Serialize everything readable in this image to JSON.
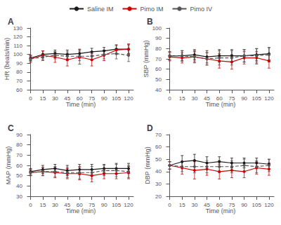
{
  "chart_data": [
    {
      "type": "line",
      "title": "A",
      "xlabel": "Time (min)",
      "ylabel": "HR (beats/min)",
      "x": [
        0,
        15,
        30,
        45,
        60,
        75,
        90,
        105,
        120
      ],
      "xlim": [
        -3,
        126
      ],
      "xticks": [
        0,
        15,
        30,
        45,
        60,
        75,
        90,
        105,
        120
      ],
      "ylim": [
        60,
        130
      ],
      "yticks": [
        60,
        70,
        80,
        90,
        100,
        110,
        120,
        130
      ],
      "grid": false,
      "legend": "top",
      "series": [
        {
          "name": "Saline IM",
          "color": "#1a1a1a",
          "marker": "circle",
          "line_style": "solid",
          "values": [
            96,
            100,
            101,
            100,
            101,
            103,
            104,
            106,
            106
          ],
          "errors": [
            3,
            4,
            4,
            5,
            5,
            4,
            4,
            5,
            5
          ]
        },
        {
          "name": "Pimo IM",
          "color": "#cc0000",
          "marker": "circle",
          "line_style": "solid",
          "values": [
            95,
            99,
            97,
            94,
            97,
            94,
            99,
            105,
            106
          ],
          "errors": [
            4,
            5,
            6,
            7,
            8,
            7,
            6,
            5,
            6
          ]
        },
        {
          "name": "Pimo IV",
          "color": "#555555",
          "marker": "circle",
          "line_style": "dashed",
          "values": [
            95,
            97,
            99,
            98,
            98,
            98,
            100,
            101,
            99
          ],
          "errors": [
            3,
            4,
            4,
            5,
            5,
            5,
            5,
            6,
            7
          ]
        }
      ]
    },
    {
      "type": "line",
      "title": "B",
      "xlabel": "Time (min)",
      "ylabel": "SBP (mmHg)",
      "x": [
        0,
        15,
        30,
        45,
        60,
        75,
        90,
        105,
        120
      ],
      "xlim": [
        -3,
        126
      ],
      "xticks": [
        0,
        15,
        30,
        45,
        60,
        75,
        90,
        105,
        120
      ],
      "ylim": [
        40,
        100
      ],
      "yticks": [
        40,
        50,
        60,
        70,
        80,
        90,
        100
      ],
      "grid": false,
      "series": [
        {
          "name": "Saline IM",
          "color": "#1a1a1a",
          "marker": "circle",
          "line_style": "solid",
          "values": [
            73,
            73,
            74,
            72,
            73,
            73,
            73,
            74,
            75
          ],
          "errors": [
            4,
            5,
            5,
            6,
            6,
            6,
            6,
            6,
            6
          ]
        },
        {
          "name": "Pimo IM",
          "color": "#cc0000",
          "marker": "circle",
          "line_style": "solid",
          "values": [
            72,
            71,
            72,
            70,
            68,
            67,
            71,
            71,
            68
          ],
          "errors": [
            4,
            5,
            5,
            6,
            7,
            7,
            6,
            6,
            7
          ]
        },
        {
          "name": "Pimo IV",
          "color": "#555555",
          "marker": "circle",
          "line_style": "dashed",
          "values": [
            73,
            73,
            72,
            70,
            71,
            71,
            73,
            73,
            74
          ],
          "errors": [
            4,
            5,
            6,
            6,
            7,
            7,
            6,
            7,
            7
          ]
        }
      ]
    },
    {
      "type": "line",
      "title": "C",
      "xlabel": "Time (min)",
      "ylabel": "MAP (mmHg)",
      "x": [
        0,
        15,
        30,
        45,
        60,
        75,
        90,
        105,
        120
      ],
      "xlim": [
        -3,
        126
      ],
      "xticks": [
        0,
        15,
        30,
        45,
        60,
        75,
        90,
        105,
        120
      ],
      "ylim": [
        30,
        90
      ],
      "yticks": [
        30,
        40,
        50,
        60,
        70,
        80,
        90
      ],
      "grid": false,
      "series": [
        {
          "name": "Saline IM",
          "color": "#1a1a1a",
          "marker": "circle",
          "line_style": "solid",
          "values": [
            54,
            56,
            57,
            55,
            56,
            56,
            57,
            57,
            57
          ],
          "errors": [
            3,
            4,
            4,
            5,
            5,
            5,
            4,
            5,
            5
          ]
        },
        {
          "name": "Pimo IM",
          "color": "#cc0000",
          "marker": "circle",
          "line_style": "solid",
          "values": [
            53,
            54,
            53,
            52,
            52,
            50,
            52,
            52,
            53
          ],
          "errors": [
            3,
            4,
            5,
            5,
            6,
            6,
            5,
            5,
            6
          ]
        },
        {
          "name": "Pimo IV",
          "color": "#555555",
          "marker": "circle",
          "line_style": "dashed",
          "values": [
            53,
            54,
            54,
            53,
            53,
            53,
            55,
            55,
            54
          ],
          "errors": [
            3,
            4,
            5,
            5,
            6,
            6,
            5,
            6,
            6
          ]
        }
      ]
    },
    {
      "type": "line",
      "title": "D",
      "xlabel": "Time (min)",
      "ylabel": "DBP (mmHg)",
      "x": [
        0,
        15,
        30,
        45,
        60,
        75,
        90,
        105,
        120
      ],
      "xlim": [
        -3,
        126
      ],
      "xticks": [
        0,
        15,
        30,
        45,
        60,
        75,
        90,
        105,
        120
      ],
      "ylim": [
        20,
        70
      ],
      "yticks": [
        20,
        30,
        40,
        50,
        60,
        70
      ],
      "grid": false,
      "series": [
        {
          "name": "Saline IM",
          "color": "#1a1a1a",
          "marker": "circle",
          "line_style": "solid",
          "values": [
            45,
            48,
            49,
            47,
            48,
            47,
            47,
            47,
            46
          ],
          "errors": [
            3,
            5,
            5,
            5,
            4,
            4,
            4,
            4,
            4
          ]
        },
        {
          "name": "Pimo IM",
          "color": "#cc0000",
          "marker": "circle",
          "line_style": "solid",
          "values": [
            45,
            43,
            41,
            42,
            40,
            41,
            40,
            43,
            42
          ],
          "errors": [
            3,
            5,
            7,
            5,
            6,
            6,
            5,
            5,
            5
          ]
        },
        {
          "name": "Pimo IV",
          "color": "#555555",
          "marker": "circle",
          "line_style": "dashed",
          "values": [
            45,
            44,
            44,
            44,
            44,
            44,
            45,
            44,
            45
          ],
          "errors": [
            3,
            4,
            5,
            5,
            5,
            5,
            5,
            5,
            5
          ]
        }
      ]
    }
  ]
}
